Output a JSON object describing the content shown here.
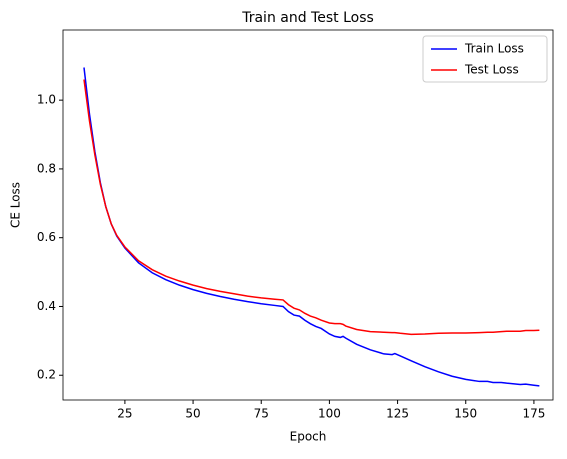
{
  "chart_data": {
    "type": "line",
    "title": "Train and Test Loss",
    "x_label": "Epoch",
    "y_label": "CE Loss",
    "x": [
      10,
      12,
      14,
      16,
      18,
      20,
      22,
      25,
      30,
      35,
      40,
      45,
      50,
      55,
      60,
      65,
      70,
      75,
      80,
      83,
      85,
      87,
      89,
      91,
      93,
      95,
      97,
      100,
      102,
      104,
      105,
      106,
      110,
      115,
      120,
      123,
      124,
      126,
      130,
      135,
      140,
      145,
      150,
      155,
      158,
      160,
      163,
      165,
      170,
      172,
      175,
      177
    ],
    "series": [
      {
        "name": "Train Loss",
        "color": "#0000ff",
        "values": [
          1.095,
          0.96,
          0.85,
          0.76,
          0.69,
          0.64,
          0.605,
          0.57,
          0.527,
          0.498,
          0.478,
          0.462,
          0.449,
          0.438,
          0.429,
          0.421,
          0.414,
          0.408,
          0.403,
          0.4,
          0.385,
          0.375,
          0.372,
          0.36,
          0.35,
          0.342,
          0.336,
          0.32,
          0.313,
          0.31,
          0.313,
          0.308,
          0.29,
          0.274,
          0.262,
          0.26,
          0.263,
          0.256,
          0.242,
          0.225,
          0.21,
          0.197,
          0.188,
          0.182,
          0.182,
          0.179,
          0.179,
          0.177,
          0.173,
          0.174,
          0.171,
          0.169
        ]
      },
      {
        "name": "Test Loss",
        "color": "#ff0000",
        "values": [
          1.06,
          0.94,
          0.84,
          0.755,
          0.69,
          0.64,
          0.607,
          0.573,
          0.533,
          0.507,
          0.488,
          0.474,
          0.462,
          0.452,
          0.444,
          0.437,
          0.43,
          0.425,
          0.421,
          0.419,
          0.405,
          0.395,
          0.39,
          0.38,
          0.372,
          0.367,
          0.36,
          0.352,
          0.35,
          0.35,
          0.348,
          0.343,
          0.333,
          0.327,
          0.325,
          0.324,
          0.324,
          0.322,
          0.319,
          0.32,
          0.322,
          0.323,
          0.323,
          0.324,
          0.325,
          0.325,
          0.327,
          0.328,
          0.328,
          0.33,
          0.33,
          0.331
        ]
      }
    ],
    "xlim": [
      2.3,
      182
    ],
    "xticks": [
      25,
      50,
      75,
      100,
      125,
      150,
      175
    ],
    "ylim": [
      0.128,
      1.204
    ],
    "yticks": [
      0.2,
      0.4,
      0.6,
      0.8,
      {
        "value": 1,
        "label": "1.0"
      }
    ],
    "legend": "upper right"
  }
}
